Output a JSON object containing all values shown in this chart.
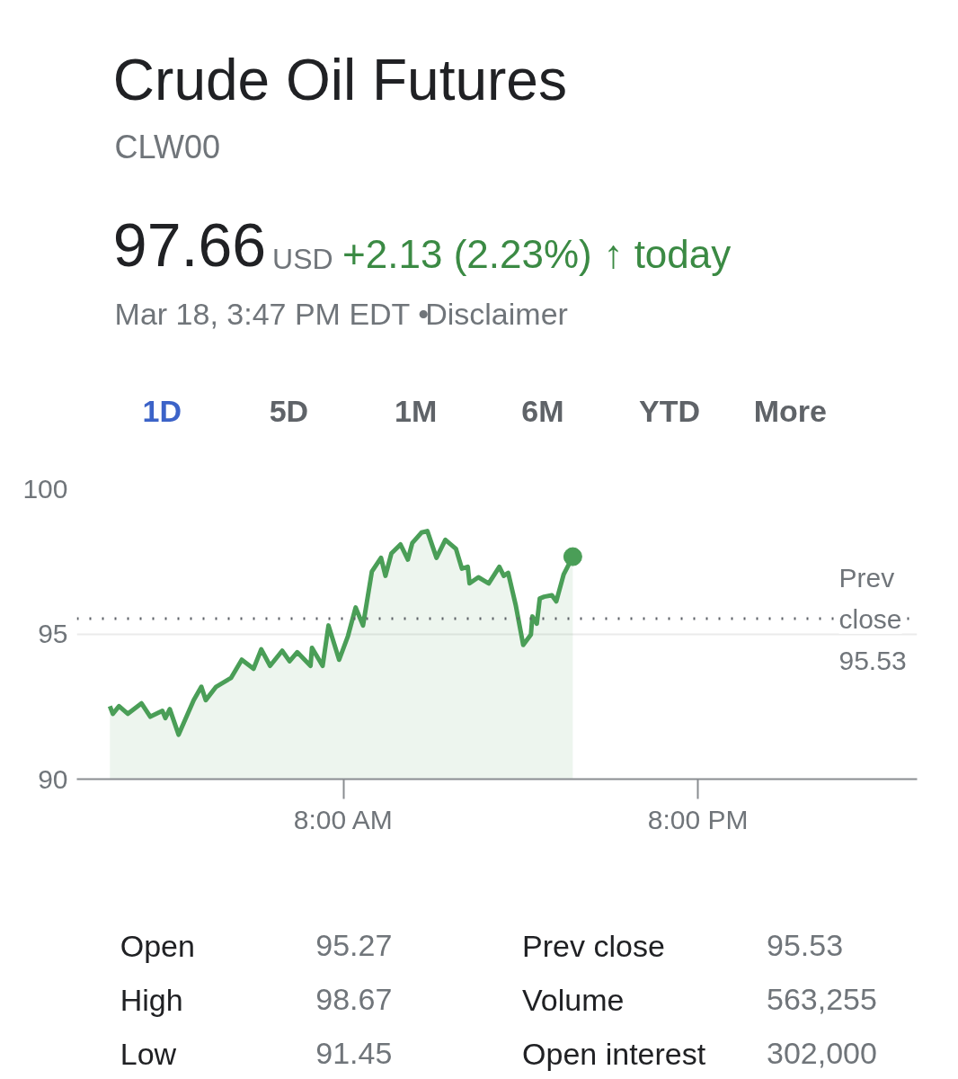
{
  "chart_data": {
    "type": "area",
    "title": "Crude Oil Futures",
    "subtitle": "CLW00",
    "x": [
      0.07,
      0.17,
      0.38,
      0.68,
      1.14,
      1.44,
      1.85,
      1.95,
      2.1,
      2.4,
      2.91,
      3.17,
      3.32,
      3.67,
      4.18,
      4.54,
      4.94,
      5.2,
      5.5,
      5.91,
      6.16,
      6.42,
      6.87,
      6.92,
      7.28,
      7.48,
      7.84,
      8.14,
      8.4,
      8.65,
      8.95,
      9.26,
      9.41,
      9.61,
      9.92,
      10.17,
      10.32,
      10.63,
      10.83,
      11.14,
      11.44,
      11.8,
      12.0,
      12.2,
      12.26,
      12.56,
      12.91,
      13.27,
      13.42,
      13.57,
      13.83,
      14.08,
      14.34,
      14.39,
      14.54,
      14.64,
      14.79,
      15.05,
      15.2,
      15.45,
      15.76
    ],
    "series": [
      {
        "color": "#4a9e57",
        "values": [
          92.51,
          92.25,
          92.51,
          92.25,
          92.61,
          92.15,
          92.35,
          92.1,
          92.41,
          91.53,
          92.72,
          93.18,
          92.72,
          93.18,
          93.49,
          94.11,
          93.8,
          94.47,
          93.9,
          94.42,
          94.06,
          94.37,
          93.9,
          94.52,
          93.9,
          95.29,
          94.11,
          94.93,
          95.91,
          95.29,
          97.15,
          97.62,
          97.0,
          97.77,
          98.08,
          97.56,
          98.13,
          98.49,
          98.54,
          97.62,
          98.24,
          97.93,
          97.25,
          97.31,
          96.74,
          96.95,
          96.74,
          97.31,
          97.0,
          97.1,
          95.97,
          94.62,
          94.98,
          95.6,
          95.35,
          96.22,
          96.28,
          96.33,
          96.12,
          97.05,
          97.66
        ]
      }
    ],
    "xlim": [
      -1.05,
      27.43
    ],
    "xticks": [
      {
        "value": 8,
        "label": "8:00 AM"
      },
      {
        "value": 20,
        "label": "8:00 PM"
      }
    ],
    "ylim": [
      90,
      100
    ],
    "yticks": [
      90,
      95,
      100
    ],
    "grid": "y",
    "ref_lines": [
      {
        "axis": "y",
        "value": 95.53,
        "label": "Prev close 95.53",
        "color": "#5f6368",
        "line_style": "dotted"
      }
    ],
    "annotations": [
      "97.66",
      "USD",
      "+2.13 (2.23%)",
      "↑ today",
      "Mar 18, 3:47 PM EDT •",
      "Disclaimer",
      "1D",
      "5D",
      "1M",
      "6M",
      "YTD",
      "More",
      "Open",
      "95.27",
      "High",
      "98.67",
      "Low",
      "91.45",
      "Prev close",
      "95.53",
      "Volume",
      "563,255",
      "Open interest",
      "302,000"
    ]
  }
}
